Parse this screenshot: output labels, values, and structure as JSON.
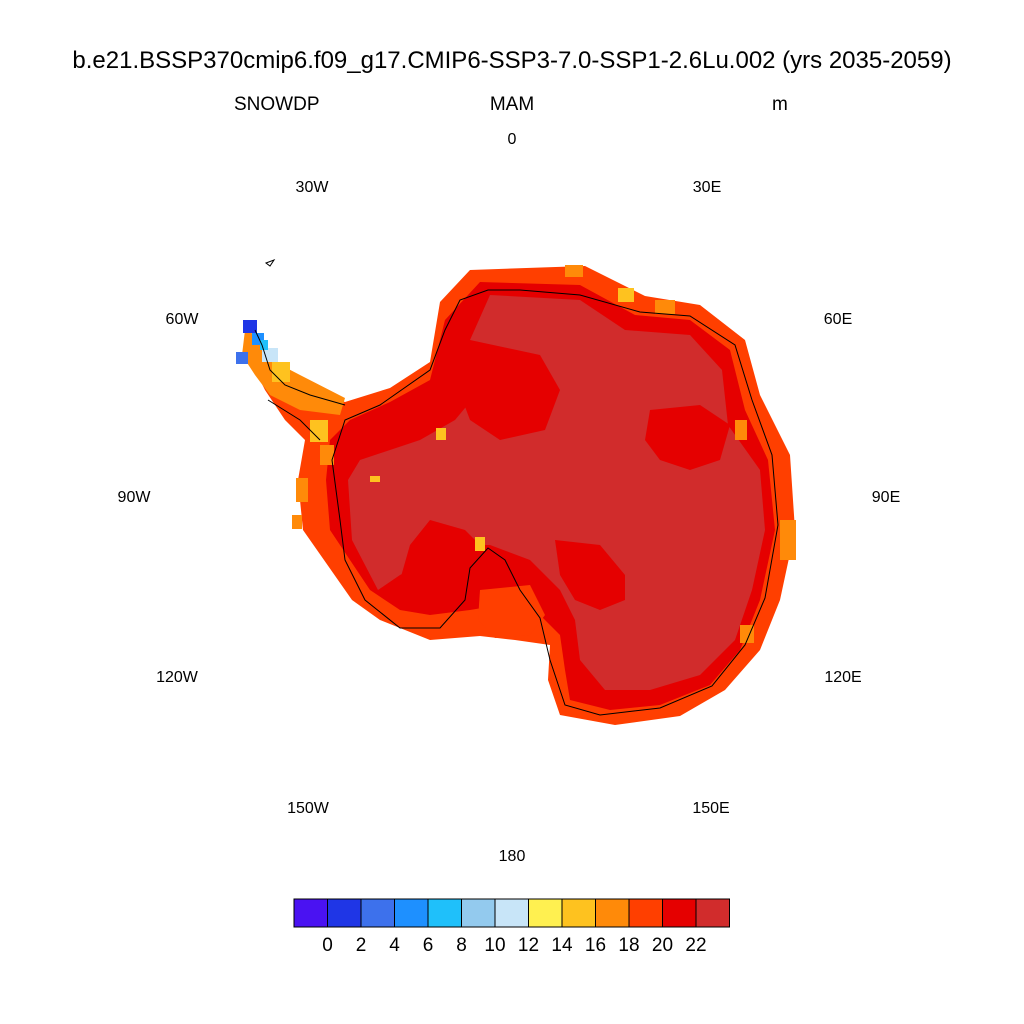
{
  "title": "b.e21.BSSP370cmip6.f09_g17.CMIP6-SSP3-7.0-SSP1-2.6Lu.002 (yrs 2035-2059)",
  "subtitle": {
    "left": "SNOWDP",
    "center": "MAM",
    "right": "m"
  },
  "longitude_labels": {
    "top": "0",
    "top_right": "30E",
    "right_upper": "60E",
    "right": "90E",
    "right_lower": "120E",
    "bottom_right": "150E",
    "bottom": "180",
    "bottom_left": "150W",
    "left_lower": "120W",
    "left": "90W",
    "left_upper": "60W",
    "top_left": "30W"
  },
  "colorbar": {
    "colors": [
      "#4a12f2",
      "#1f36e6",
      "#3d71ec",
      "#1e90ff",
      "#1fc0fa",
      "#93caee",
      "#c8e5f8",
      "#fff050",
      "#fec21f",
      "#ff8a09",
      "#ff3f00",
      "#e50000",
      "#d12c2c"
    ],
    "tick_labels": [
      "0",
      "2",
      "4",
      "6",
      "8",
      "10",
      "12",
      "14",
      "16",
      "18",
      "20",
      "22"
    ]
  },
  "map_colors": {
    "interior": "#d12c2c",
    "high": "#e50000",
    "mid": "#ff3f00",
    "low": "#ff8a09",
    "yellow": "#fec21f",
    "blue": "#1e90ff"
  }
}
